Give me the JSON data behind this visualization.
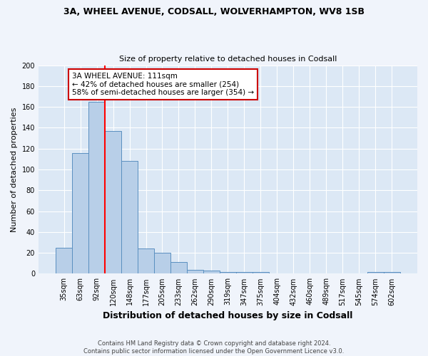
{
  "title1": "3A, WHEEL AVENUE, CODSALL, WOLVERHAMPTON, WV8 1SB",
  "title2": "Size of property relative to detached houses in Codsall",
  "xlabel": "Distribution of detached houses by size in Codsall",
  "ylabel": "Number of detached properties",
  "categories": [
    "35sqm",
    "63sqm",
    "92sqm",
    "120sqm",
    "148sqm",
    "177sqm",
    "205sqm",
    "233sqm",
    "262sqm",
    "290sqm",
    "319sqm",
    "347sqm",
    "375sqm",
    "404sqm",
    "432sqm",
    "460sqm",
    "489sqm",
    "517sqm",
    "545sqm",
    "574sqm",
    "602sqm"
  ],
  "values": [
    25,
    116,
    165,
    137,
    108,
    24,
    20,
    11,
    4,
    3,
    2,
    2,
    2,
    0,
    0,
    0,
    0,
    0,
    0,
    2,
    2
  ],
  "bar_color": "#b8cfe8",
  "bar_edge_color": "#5a8fc0",
  "red_line_x": 2.5,
  "annotation_text": "3A WHEEL AVENUE: 111sqm\n← 42% of detached houses are smaller (254)\n58% of semi-detached houses are larger (354) →",
  "annotation_box_color": "#ffffff",
  "annotation_box_edge_color": "#cc0000",
  "footer": "Contains HM Land Registry data © Crown copyright and database right 2024.\nContains public sector information licensed under the Open Government Licence v3.0.",
  "bg_color": "#dce8f5",
  "fig_bg_color": "#f0f4fb",
  "ylim": [
    0,
    200
  ],
  "yticks": [
    0,
    20,
    40,
    60,
    80,
    100,
    120,
    140,
    160,
    180,
    200
  ],
  "title1_fontsize": 9,
  "title2_fontsize": 8,
  "xlabel_fontsize": 9,
  "ylabel_fontsize": 8,
  "tick_fontsize": 7,
  "annotation_fontsize": 7.5,
  "footer_fontsize": 6
}
